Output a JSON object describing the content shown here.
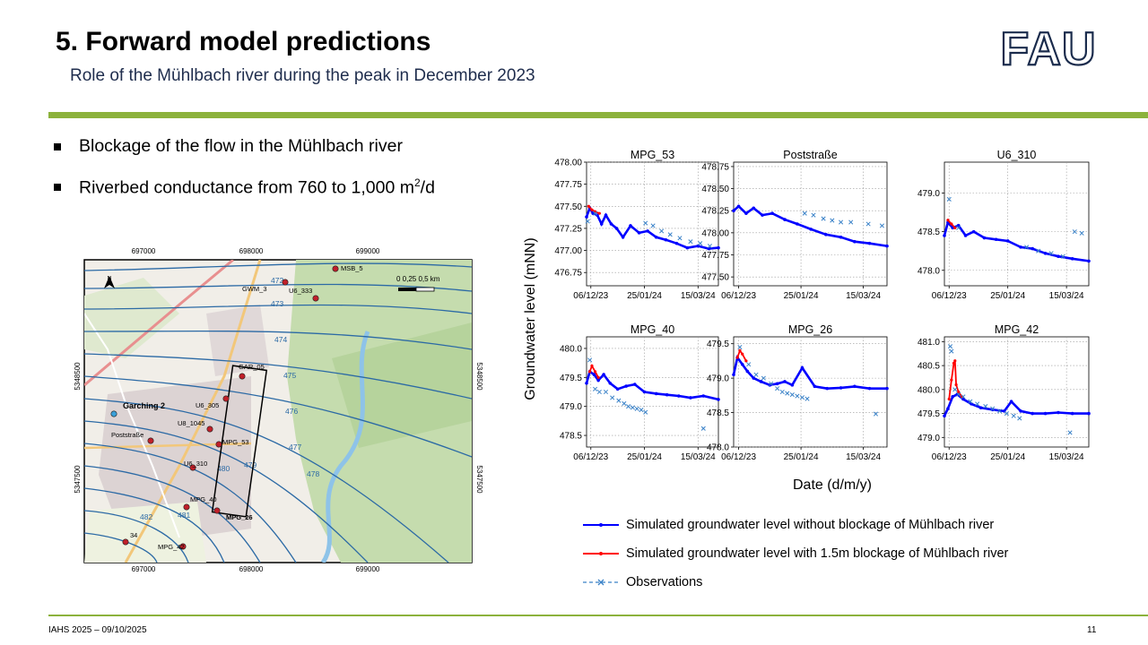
{
  "slide": {
    "title": "5. Forward model predictions",
    "subtitle": "Role of the Mühlbach  river during  the peak in December 2023",
    "logo_text": "FAU",
    "bullets": [
      {
        "text": "Blockage of the flow in the Mühlbach  river",
        "sup": "",
        "suffix": ""
      },
      {
        "text": "Riverbed conductance from 760 to 1,000 m",
        "sup": "2",
        "suffix": "/d"
      }
    ],
    "footer": "IAHS 2025 – 09/10/2025",
    "page": "11"
  },
  "colors": {
    "accent_green": "#8cb23c",
    "fau_navy": "#1a2b4c",
    "sim_no_blockage": "#0000ff",
    "sim_blockage": "#ff0000",
    "observations": "#3a82c8",
    "map_contour": "#2c6aa5"
  },
  "map": {
    "x_ticks": [
      "697000",
      "698000",
      "699000"
    ],
    "y_ticks": [
      "5348500",
      "5347500"
    ],
    "north_label": "N",
    "scale_label": "0   0,25  0,5 km",
    "contours": [
      "472",
      "473",
      "474",
      "475",
      "476",
      "477",
      "478",
      "479",
      "480",
      "481",
      "482"
    ],
    "wells": [
      {
        "label": "MSB_5"
      },
      {
        "label": "GWM_3"
      },
      {
        "label": "U6_333"
      },
      {
        "label": "GAR_05"
      },
      {
        "label": "U6_305"
      },
      {
        "label": "Garching 2"
      },
      {
        "label": "U8_1045"
      },
      {
        "label": "MPG_53"
      },
      {
        "label": "Poststraße"
      },
      {
        "label": "U6_310"
      },
      {
        "label": "MPG_40"
      },
      {
        "label": "MPG_26"
      },
      {
        "label": "34"
      },
      {
        "label": "MPG_42"
      }
    ]
  },
  "chart_data": {
    "type": "line",
    "ylabel": "Groundwater level (mNN)",
    "xlabel": "Date (d/m/y)",
    "x_ticks": [
      "06/12/23",
      "25/01/24",
      "15/03/24"
    ],
    "x_range": [
      "2023-12-02",
      "2024-04-03"
    ],
    "grid": true,
    "legend": {
      "placement": "bottom",
      "entries": [
        "Simulated groundwater level without blockage of Mühlbach river",
        "Simulated groundwater level with 1.5m blockage of Mühlbach river",
        "Observations"
      ]
    },
    "panels": [
      {
        "name": "MPG_53",
        "ylim": [
          476.6,
          478.0
        ],
        "yticks": [
          "478.00",
          "477.75",
          "477.50",
          "477.25",
          "477.00",
          "476.75"
        ],
        "series": [
          {
            "name": "Simulated groundwater level without blockage of Mühlbach river",
            "x": [
              "2023-12-02",
              "2023-12-05",
              "2023-12-08",
              "2023-12-12",
              "2023-12-16",
              "2023-12-20",
              "2023-12-25",
              "2023-12-30",
              "2024-01-05",
              "2024-01-12",
              "2024-01-20",
              "2024-01-28",
              "2024-02-05",
              "2024-02-14",
              "2024-02-24",
              "2024-03-05",
              "2024-03-15",
              "2024-03-25",
              "2024-04-03"
            ],
            "y": [
              477.38,
              477.48,
              477.42,
              477.4,
              477.3,
              477.4,
              477.3,
              477.25,
              477.15,
              477.28,
              477.2,
              477.22,
              477.15,
              477.12,
              477.08,
              477.03,
              477.05,
              477.02,
              477.03
            ]
          },
          {
            "name": "Simulated groundwater level with 1.5m blockage of Mühlbach river",
            "x": [
              "2023-12-04",
              "2023-12-07",
              "2023-12-10",
              "2023-12-14"
            ],
            "y": [
              477.5,
              477.46,
              477.44,
              477.42
            ]
          },
          {
            "name": "Observations",
            "x": [
              "2023-12-03",
              "2023-12-10",
              "2024-01-26",
              "2024-02-02",
              "2024-02-10",
              "2024-02-18",
              "2024-02-27",
              "2024-03-08",
              "2024-03-17",
              "2024-03-26"
            ],
            "y": [
              477.33,
              477.42,
              477.31,
              477.28,
              477.22,
              477.18,
              477.14,
              477.1,
              477.08,
              477.05
            ]
          }
        ]
      },
      {
        "name": "Poststraße",
        "ylim": [
          477.4,
          478.8
        ],
        "yticks": [
          "478.75",
          "478.50",
          "478.25",
          "478.00",
          "477.75",
          "477.50"
        ],
        "series": [
          {
            "name": "Simulated groundwater level without blockage of Mühlbach river",
            "x": [
              "2023-12-02",
              "2023-12-06",
              "2023-12-12",
              "2023-12-18",
              "2023-12-25",
              "2024-01-02",
              "2024-01-12",
              "2024-01-22",
              "2024-02-02",
              "2024-02-14",
              "2024-02-26",
              "2024-03-08",
              "2024-03-20",
              "2024-04-03"
            ],
            "y": [
              478.25,
              478.3,
              478.22,
              478.28,
              478.2,
              478.22,
              478.15,
              478.1,
              478.04,
              477.98,
              477.95,
              477.9,
              477.88,
              477.85
            ]
          },
          {
            "name": "Simulated groundwater level with 1.5m blockage of Mühlbach river",
            "x": [],
            "y": []
          },
          {
            "name": "Observations",
            "x": [
              "2024-01-28",
              "2024-02-04",
              "2024-02-12",
              "2024-02-19",
              "2024-02-26",
              "2024-03-05",
              "2024-03-19",
              "2024-03-30"
            ],
            "y": [
              478.22,
              478.2,
              478.16,
              478.14,
              478.12,
              478.12,
              478.1,
              478.08
            ]
          }
        ]
      },
      {
        "name": "U6_310",
        "ylim": [
          477.8,
          479.4
        ],
        "yticks": [
          "479.0",
          "478.5",
          "478.0"
        ],
        "series": [
          {
            "name": "Simulated groundwater level without blockage of Mühlbach river",
            "x": [
              "2023-12-02",
              "2023-12-05",
              "2023-12-09",
              "2023-12-14",
              "2023-12-20",
              "2023-12-27",
              "2024-01-05",
              "2024-01-15",
              "2024-01-25",
              "2024-02-05",
              "2024-02-15",
              "2024-02-26",
              "2024-03-08",
              "2024-03-20",
              "2024-04-03"
            ],
            "y": [
              478.45,
              478.62,
              478.55,
              478.58,
              478.45,
              478.5,
              478.42,
              478.4,
              478.38,
              478.3,
              478.28,
              478.22,
              478.18,
              478.15,
              478.12
            ]
          },
          {
            "name": "Simulated groundwater level with 1.5m blockage of Mühlbach river",
            "x": [
              "2023-12-05",
              "2023-12-08",
              "2023-12-11"
            ],
            "y": [
              478.65,
              478.6,
              478.55
            ]
          },
          {
            "name": "Observations",
            "x": [
              "2023-12-06",
              "2023-12-14",
              "2024-02-10",
              "2024-02-20",
              "2024-03-02",
              "2024-03-12",
              "2024-03-22",
              "2024-03-28"
            ],
            "y": [
              478.92,
              478.55,
              478.3,
              478.25,
              478.22,
              478.18,
              478.5,
              478.48
            ]
          }
        ]
      },
      {
        "name": "MPG_40",
        "ylim": [
          478.3,
          480.2
        ],
        "yticks": [
          "480.0",
          "479.5",
          "479.0",
          "478.5"
        ],
        "series": [
          {
            "name": "Simulated groundwater level without blockage of Mühlbach river",
            "x": [
              "2023-12-02",
              "2023-12-05",
              "2023-12-09",
              "2023-12-13",
              "2023-12-18",
              "2023-12-24",
              "2023-12-31",
              "2024-01-08",
              "2024-01-16",
              "2024-01-25",
              "2024-02-05",
              "2024-02-15",
              "2024-02-26",
              "2024-03-08",
              "2024-03-20",
              "2024-04-03"
            ],
            "y": [
              479.4,
              479.6,
              479.55,
              479.45,
              479.55,
              479.4,
              479.3,
              479.35,
              479.38,
              479.25,
              479.22,
              479.2,
              479.18,
              479.15,
              479.18,
              479.12
            ]
          },
          {
            "name": "Simulated groundwater level with 1.5m blockage of Mühlbach river",
            "x": [
              "2023-12-05",
              "2023-12-07",
              "2023-12-10",
              "2023-12-13"
            ],
            "y": [
              479.6,
              479.7,
              479.6,
              479.5
            ]
          },
          {
            "name": "Observations",
            "x": [
              "2023-12-05",
              "2023-12-10",
              "2023-12-14",
              "2023-12-20",
              "2023-12-26",
              "2024-01-01",
              "2024-01-06",
              "2024-01-10",
              "2024-01-14",
              "2024-01-18",
              "2024-01-22",
              "2024-01-26",
              "2024-03-20"
            ],
            "y": [
              479.8,
              479.3,
              479.25,
              479.25,
              479.15,
              479.1,
              479.05,
              479.0,
              478.98,
              478.96,
              478.94,
              478.9,
              478.62
            ]
          }
        ]
      },
      {
        "name": "MPG_26",
        "ylim": [
          478.0,
          479.6
        ],
        "yticks": [
          "479.5",
          "479.0",
          "478.5",
          "478.0"
        ],
        "series": [
          {
            "name": "Simulated groundwater level without blockage of Mühlbach river",
            "x": [
              "2023-12-02",
              "2023-12-05",
              "2023-12-09",
              "2023-12-13",
              "2023-12-18",
              "2023-12-24",
              "2023-12-31",
              "2024-01-06",
              "2024-01-12",
              "2024-01-18",
              "2024-01-26",
              "2024-02-05",
              "2024-02-15",
              "2024-02-26",
              "2024-03-08",
              "2024-03-20",
              "2024-04-03"
            ],
            "y": [
              479.05,
              479.3,
              479.2,
              479.1,
              479.0,
              478.95,
              478.9,
              478.92,
              478.95,
              478.9,
              479.15,
              478.88,
              478.85,
              478.86,
              478.88,
              478.85,
              478.85
            ]
          },
          {
            "name": "Simulated groundwater level with 1.5m blockage of Mühlbach river",
            "x": [
              "2023-12-05",
              "2023-12-07",
              "2023-12-09",
              "2023-12-12"
            ],
            "y": [
              479.3,
              479.4,
              479.35,
              479.25
            ]
          },
          {
            "name": "Observations",
            "x": [
              "2023-12-07",
              "2023-12-14",
              "2023-12-20",
              "2023-12-26",
              "2024-01-01",
              "2024-01-06",
              "2024-01-10",
              "2024-01-14",
              "2024-01-18",
              "2024-01-22",
              "2024-01-26",
              "2024-01-30",
              "2024-03-25"
            ],
            "y": [
              479.45,
              479.2,
              479.05,
              479.0,
              478.92,
              478.85,
              478.8,
              478.78,
              478.76,
              478.74,
              478.72,
              478.7,
              478.48
            ]
          }
        ]
      },
      {
        "name": "MPG_42",
        "ylim": [
          478.8,
          481.1
        ],
        "yticks": [
          "481.0",
          "480.5",
          "480.0",
          "479.5",
          "479.0"
        ],
        "series": [
          {
            "name": "Simulated groundwater level without blockage of Mühlbach river",
            "x": [
              "2023-12-02",
              "2023-12-05",
              "2023-12-09",
              "2023-12-13",
              "2023-12-18",
              "2023-12-25",
              "2024-01-02",
              "2024-01-12",
              "2024-01-22",
              "2024-01-28",
              "2024-02-05",
              "2024-02-15",
              "2024-02-26",
              "2024-03-08",
              "2024-03-20",
              "2024-04-03"
            ],
            "y": [
              479.45,
              479.6,
              479.85,
              479.9,
              479.8,
              479.7,
              479.62,
              479.58,
              479.55,
              479.75,
              479.55,
              479.5,
              479.5,
              479.52,
              479.5,
              479.5
            ]
          },
          {
            "name": "Simulated groundwater level with 1.5m blockage of Mühlbach river",
            "x": [
              "2023-12-06",
              "2023-12-08",
              "2023-12-10",
              "2023-12-11",
              "2023-12-12",
              "2023-12-14",
              "2023-12-17"
            ],
            "y": [
              479.8,
              480.2,
              480.55,
              480.6,
              480.1,
              479.95,
              479.85
            ]
          },
          {
            "name": "Observations",
            "x": [
              "2023-12-07",
              "2023-12-08",
              "2023-12-11",
              "2023-12-14",
              "2023-12-18",
              "2023-12-24",
              "2023-12-30",
              "2024-01-06",
              "2024-01-12",
              "2024-01-18",
              "2024-01-24",
              "2024-01-30",
              "2024-02-04",
              "2024-03-18"
            ],
            "y": [
              480.9,
              480.8,
              480.0,
              479.9,
              479.85,
              479.75,
              479.7,
              479.65,
              479.6,
              479.55,
              479.5,
              479.45,
              479.4,
              479.1
            ]
          }
        ]
      }
    ]
  }
}
